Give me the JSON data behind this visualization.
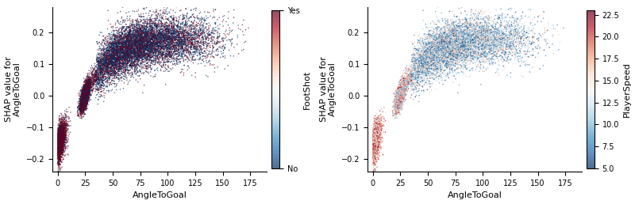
{
  "n_points": 15000,
  "seed": 7,
  "xlabel": "AngleToGoal",
  "ylabel": "SHAP value for\nAngleToGoal",
  "xlim": [
    -5,
    190
  ],
  "ylim": [
    -0.24,
    0.28
  ],
  "xticks": [
    0,
    25,
    50,
    75,
    100,
    125,
    150,
    175
  ],
  "yticks": [
    -0.2,
    -0.1,
    0.0,
    0.1,
    0.2
  ],
  "colorbar1_label": "FootShot",
  "colorbar2_label": "PlayerSpeed",
  "colorbar2_ticks": [
    5.0,
    7.5,
    10.0,
    12.5,
    15.0,
    17.5,
    20.0,
    22.5
  ],
  "colormap1": "RdBu_r",
  "colormap2": "RdBu_r",
  "point_size": 1.2,
  "point_alpha": 0.7,
  "background_color": "#ffffff",
  "tick_fontsize": 7,
  "label_fontsize": 8
}
